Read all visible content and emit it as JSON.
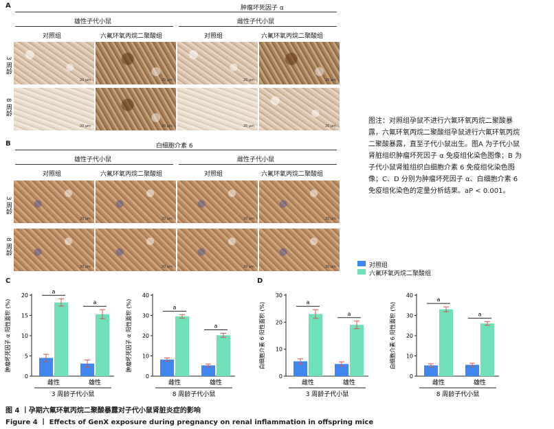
{
  "panel_a": {
    "letter": "A",
    "title": "肿瘤坏死因子 α",
    "group_left": "雄性子代小鼠",
    "group_right": "雌性子代小鼠",
    "col_labels": [
      "对照组",
      "六氟环氧丙烷二聚酸组",
      "对照组",
      "六氟环氧丙烷二聚酸组"
    ],
    "row_labels": [
      "3 周龄",
      "8 周龄"
    ],
    "scale_text": "20 μm"
  },
  "panel_b": {
    "letter": "B",
    "title": "白细胞介素 6",
    "group_left": "雄性子代小鼠",
    "group_right": "雌性子代小鼠",
    "col_labels": [
      "对照组",
      "六氟环氧丙烷二聚酸组",
      "对照组",
      "六氟环氧丙烷二聚酸组"
    ],
    "row_labels": [
      "3 周龄",
      "8 周龄"
    ]
  },
  "caption_note": "图注：对照组孕鼠不进行六氟环氧丙烷二聚酸暴露，六氟环氧丙烷二聚酸组孕鼠进行六氟环氧丙烷二聚酸暴露，直至子代小鼠出生。图A 为子代小鼠肾脏组织肿瘤坏死因子 α 免疫组化染色图像；B 为子代小鼠肾脏组织白细胞介素 6 免疫组化染色图像；C、D 分别为肿瘤坏死因子 α、白细胞介素 6 免疫组化染色的定量分析结果。aP < 0.001。",
  "legend": {
    "control": "对照组",
    "genx": "六氟环氧丙烷二聚酸组"
  },
  "colors": {
    "control": "#3f86ee",
    "genx": "#6fe0b8"
  },
  "panel_c_letter": "C",
  "panel_d_letter": "D",
  "chart_data": [
    {
      "type": "bar",
      "panel": "C",
      "categories": [
        "雌性",
        "雄性"
      ],
      "xlabel": "3 周龄子代小鼠",
      "ylabel": "肿瘤坏死因子 α 阳性面积 (%)",
      "ylim": [
        0,
        20
      ],
      "yticks": [
        0,
        5,
        10,
        15,
        20
      ],
      "series": [
        {
          "name": "对照组",
          "values": [
            4.5,
            3.1
          ],
          "errors": [
            0.9,
            0.9
          ]
        },
        {
          "name": "六氟环氧丙烷二聚酸组",
          "values": [
            18.2,
            15.3
          ],
          "errors": [
            0.9,
            1.1
          ]
        }
      ],
      "sig_label": "a"
    },
    {
      "type": "bar",
      "panel": "C",
      "categories": [
        "雌性",
        "雄性"
      ],
      "xlabel": "8 周龄子代小鼠",
      "ylabel": "肿瘤坏死因子 α 阳性面积 (%)",
      "ylim": [
        0,
        40
      ],
      "yticks": [
        0,
        10,
        20,
        30,
        40
      ],
      "series": [
        {
          "name": "对照组",
          "values": [
            8.2,
            5.3
          ],
          "errors": [
            0.8,
            0.7
          ]
        },
        {
          "name": "六氟环氧丙烷二聚酸组",
          "values": [
            29.5,
            20.2
          ],
          "errors": [
            0.9,
            1.0
          ]
        }
      ],
      "sig_label": "a"
    },
    {
      "type": "bar",
      "panel": "D",
      "categories": [
        "雌性",
        "雄性"
      ],
      "xlabel": "3 周龄子代小鼠",
      "ylabel": "白细胞介素 6 阳性面积 (%)",
      "ylim": [
        0,
        30
      ],
      "yticks": [
        0,
        10,
        20,
        30
      ],
      "series": [
        {
          "name": "对照组",
          "values": [
            5.5,
            4.5
          ],
          "errors": [
            0.9,
            0.8
          ]
        },
        {
          "name": "六氟环氧丙烷二聚酸组",
          "values": [
            23.0,
            19.0
          ],
          "errors": [
            1.6,
            1.4
          ]
        }
      ],
      "sig_label": "a"
    },
    {
      "type": "bar",
      "panel": "D",
      "categories": [
        "雌性",
        "雄性"
      ],
      "xlabel": "8 周龄子代小鼠",
      "ylabel": "白细胞介素 6 阳性面积 (%)",
      "ylim": [
        0,
        40
      ],
      "yticks": [
        0,
        10,
        20,
        30,
        40
      ],
      "series": [
        {
          "name": "对照组",
          "values": [
            5.3,
            5.6
          ],
          "errors": [
            0.8,
            0.8
          ]
        },
        {
          "name": "六氟环氧丙烷二聚酸组",
          "values": [
            33.0,
            26.0
          ],
          "errors": [
            1.2,
            0.9
          ]
        }
      ],
      "sig_label": "a"
    }
  ],
  "figure_caption_cn": "图 4 丨孕期六氟环氧丙烷二聚酸暴露对子代小鼠肾脏炎症的影响",
  "figure_caption_en": "Figure 4 丨 Effects of GenX exposure during pregnancy on renal inflammation in offspring mice"
}
